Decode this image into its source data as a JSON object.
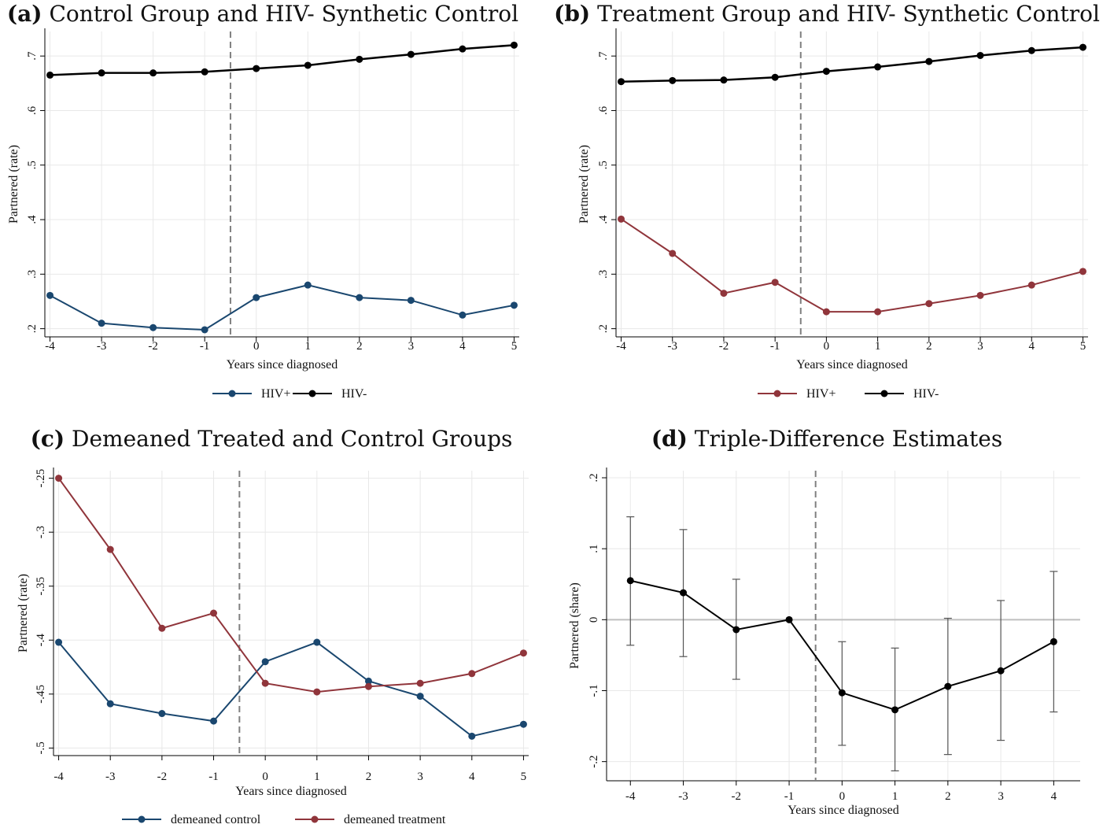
{
  "colors": {
    "blue": "#1a476f",
    "red": "#90353b",
    "black": "#000000",
    "grid": "#e8e8e8",
    "zero": "#bfbfbf",
    "vline": "#808080"
  },
  "chart_data": [
    {
      "type": "line",
      "panel_tag": "(a)",
      "title": "Control Group and HIV- Synthetic Control",
      "xlabel": "Years since diagnosed",
      "ylabel": "Partnered (rate)",
      "x": [
        -4,
        -3,
        -2,
        -1,
        0,
        1,
        2,
        3,
        4,
        5
      ],
      "xlim": [
        -4.1,
        5.1
      ],
      "ylim": [
        0.185,
        0.745
      ],
      "yticks": [
        0.2,
        0.3,
        0.4,
        0.5,
        0.6,
        0.7
      ],
      "ytick_labels": [
        ".2",
        ".3",
        ".4",
        ".5",
        ".6",
        ".7"
      ],
      "vline": -0.5,
      "grid": true,
      "legend": "bottom",
      "series": [
        {
          "name": "HIV+",
          "color": "#1a476f",
          "values": [
            0.261,
            0.21,
            0.202,
            0.198,
            0.257,
            0.28,
            0.257,
            0.252,
            0.225,
            0.243
          ]
        },
        {
          "name": "HIV-",
          "color": "#000000",
          "values": [
            0.665,
            0.669,
            0.669,
            0.671,
            0.677,
            0.683,
            0.694,
            0.703,
            0.713,
            0.72
          ]
        }
      ]
    },
    {
      "type": "line",
      "panel_tag": "(b)",
      "title": "Treatment Group and HIV- Synthetic Control",
      "xlabel": "Years since diagnosed",
      "ylabel": "Partnered (rate)",
      "x": [
        -4,
        -3,
        -2,
        -1,
        0,
        1,
        2,
        3,
        4,
        5
      ],
      "xlim": [
        -4.1,
        5.1
      ],
      "ylim": [
        0.185,
        0.745
      ],
      "yticks": [
        0.2,
        0.3,
        0.4,
        0.5,
        0.6,
        0.7
      ],
      "ytick_labels": [
        ".2",
        ".3",
        ".4",
        ".5",
        ".6",
        ".7"
      ],
      "vline": -0.5,
      "grid": true,
      "legend": "bottom",
      "series": [
        {
          "name": "HIV+",
          "color": "#90353b",
          "values": [
            0.401,
            0.338,
            0.265,
            0.285,
            0.231,
            0.231,
            0.246,
            0.261,
            0.28,
            0.305
          ]
        },
        {
          "name": "HIV-",
          "color": "#000000",
          "values": [
            0.653,
            0.655,
            0.656,
            0.661,
            0.672,
            0.68,
            0.69,
            0.701,
            0.71,
            0.716
          ]
        }
      ]
    },
    {
      "type": "line",
      "panel_tag": "(c)",
      "title": "Demeaned Treated and Control Groups",
      "xlabel": "Years since diagnosed",
      "ylabel": "Partnered (rate)",
      "x": [
        -4,
        -3,
        -2,
        -1,
        0,
        1,
        2,
        3,
        4,
        5
      ],
      "xlim": [
        -4.1,
        5.1
      ],
      "ylim": [
        -0.507,
        -0.243
      ],
      "yticks": [
        -0.5,
        -0.45,
        -0.4,
        -0.35,
        -0.3,
        -0.25
      ],
      "ytick_labels": [
        "-.5",
        "-.45",
        "-.4",
        "-.35",
        "-.3",
        "-.25"
      ],
      "vline": -0.5,
      "grid": true,
      "legend": "bottom",
      "series": [
        {
          "name": "demeaned control",
          "color": "#1a476f",
          "values": [
            -0.402,
            -0.459,
            -0.468,
            -0.475,
            -0.42,
            -0.402,
            -0.438,
            -0.452,
            -0.489,
            -0.478
          ]
        },
        {
          "name": "demeaned treatment",
          "color": "#90353b",
          "values": [
            -0.25,
            -0.316,
            -0.389,
            -0.375,
            -0.44,
            -0.448,
            -0.443,
            -0.44,
            -0.431,
            -0.412
          ]
        }
      ]
    },
    {
      "type": "line",
      "panel_tag": "(d)",
      "title": "Triple-Difference Estimates",
      "xlabel": "Years since diagnosed",
      "ylabel": "Partnered (share)",
      "x": [
        -4,
        -3,
        -2,
        -1,
        0,
        1,
        2,
        3,
        4
      ],
      "xlim": [
        -4.45,
        4.5
      ],
      "ylim": [
        -0.227,
        0.21
      ],
      "yticks": [
        -0.2,
        -0.1,
        0,
        0.1,
        0.2
      ],
      "ytick_labels": [
        "-.2",
        "-.1",
        "0",
        ".1",
        ".2"
      ],
      "vline": -0.5,
      "zero_line": true,
      "grid": true,
      "series": [
        {
          "color": "#000000",
          "values": [
            0.055,
            0.038,
            -0.014,
            0.0,
            -0.103,
            -0.127,
            -0.094,
            -0.072,
            -0.031
          ],
          "ci_low": [
            -0.036,
            -0.052,
            -0.084,
            null,
            -0.177,
            -0.213,
            -0.19,
            -0.17,
            -0.13
          ],
          "ci_high": [
            0.145,
            0.127,
            0.057,
            null,
            -0.031,
            -0.04,
            0.002,
            0.027,
            0.068
          ]
        }
      ]
    }
  ]
}
